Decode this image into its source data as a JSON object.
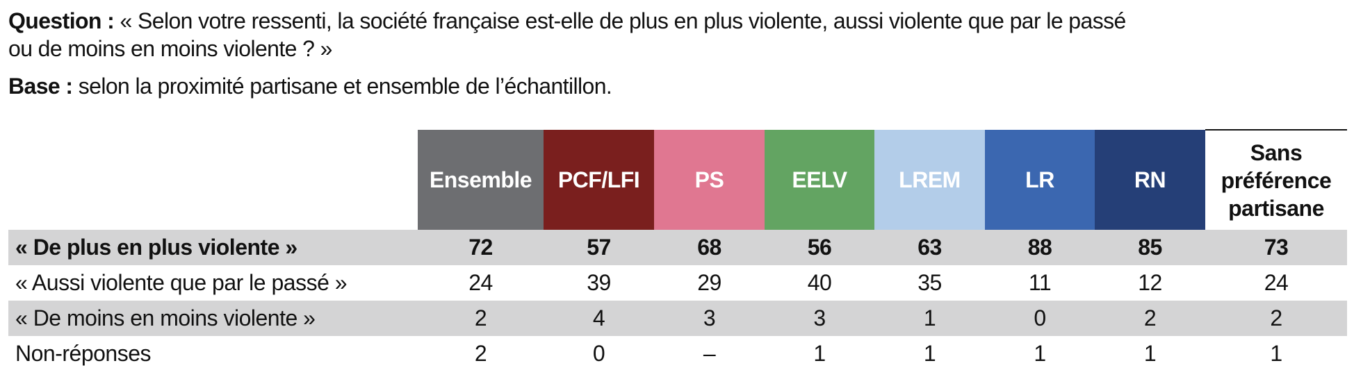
{
  "question": {
    "label": "Question :",
    "lines": [
      "« Selon votre ressenti, la société française est-elle de plus en plus violente, aussi violente que par le passé",
      "ou de moins en moins violente ? »"
    ]
  },
  "base": {
    "label": "Base :",
    "text": "selon la proximité partisane et ensemble de l’échantillon."
  },
  "table": {
    "columns": [
      "Ensemble",
      "PCF/LFI",
      "PS",
      "EELV",
      "LREM",
      "LR",
      "RN",
      "Sans préférence partisane"
    ],
    "rows": [
      {
        "label": "« De plus en plus violente »",
        "cells": [
          "72",
          "57",
          "68",
          "56",
          "63",
          "88",
          "85",
          "73"
        ]
      },
      {
        "label": "« Aussi violente que par le passé »",
        "cells": [
          "24",
          "39",
          "29",
          "40",
          "35",
          "11",
          "12",
          "24"
        ]
      },
      {
        "label": "« De moins en moins violente »",
        "cells": [
          "2",
          "4",
          "3",
          "3",
          "1",
          "0",
          "2",
          "2"
        ]
      },
      {
        "label": "Non-réponses",
        "cells": [
          "2",
          "0",
          "–",
          "1",
          "1",
          "1",
          "1",
          "1"
        ]
      }
    ]
  }
}
